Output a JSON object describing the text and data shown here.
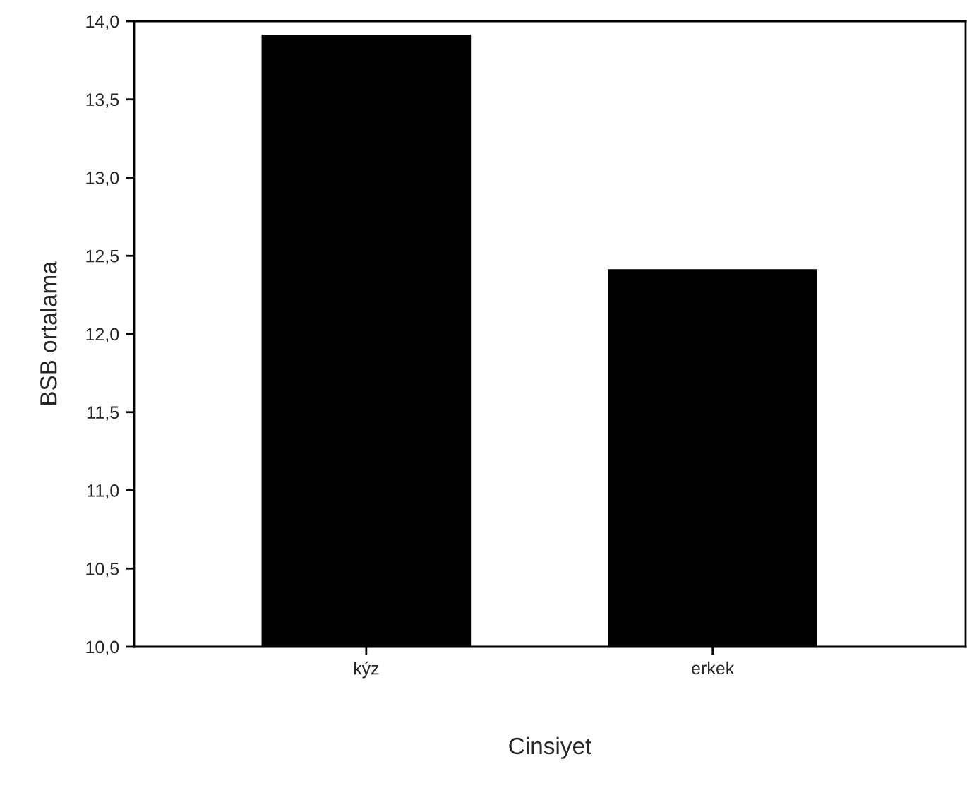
{
  "chart_data": {
    "type": "bar",
    "xlabel": "Cinsiyet",
    "ylabel": "BSB ortalama",
    "categories": [
      "kýz",
      "erkek"
    ],
    "values": [
      13.92,
      12.42
    ],
    "color": "#000000",
    "ylim": [
      10,
      14
    ],
    "yticks": [
      {
        "value": 10,
        "label": "10,0"
      },
      {
        "value": 10.5,
        "label": "10,5"
      },
      {
        "value": 11,
        "label": "11,0"
      },
      {
        "value": 11.5,
        "label": "11,5"
      },
      {
        "value": 12,
        "label": "12,0"
      },
      {
        "value": 12.5,
        "label": "12,5"
      },
      {
        "value": 13,
        "label": "13,0"
      },
      {
        "value": 13.5,
        "label": "13,5"
      },
      {
        "value": 14,
        "label": "14,0"
      }
    ],
    "grid": false,
    "legend": false
  }
}
